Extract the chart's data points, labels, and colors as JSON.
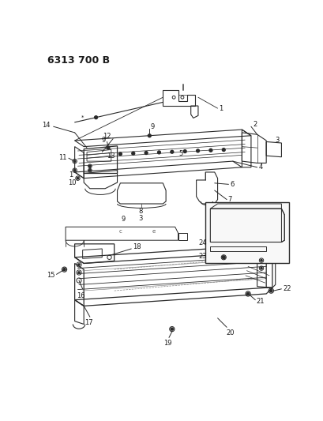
{
  "title": "6313 700 B",
  "bg_color": "#ffffff",
  "fg_color": "#1a1a1a",
  "fig_width": 4.1,
  "fig_height": 5.33,
  "dpi": 100,
  "title_fontsize": 9,
  "label_fontsize": 6.0,
  "line_color": "#2a2a2a",
  "line_lw": 0.7
}
